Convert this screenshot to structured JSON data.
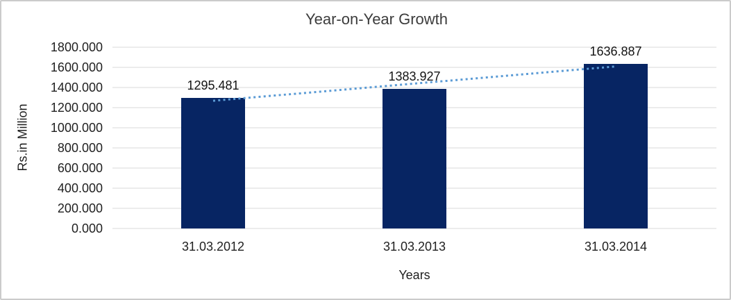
{
  "chart_data": {
    "type": "bar",
    "title": "Year-on-Year Growth",
    "xlabel": "Years",
    "ylabel": "Rs.in Million",
    "categories": [
      "31.03.2012",
      "31.03.2013",
      "31.03.2014"
    ],
    "values": [
      1295.481,
      1383.927,
      1636.887
    ],
    "data_labels": [
      "1295.481",
      "1383.927",
      "1636.887"
    ],
    "ylim": [
      0,
      1800
    ],
    "ytick_step": 200,
    "ytick_labels": [
      "0.000",
      "200.000",
      "400.000",
      "600.000",
      "800.000",
      "1000.000",
      "1200.000",
      "1400.000",
      "1600.000",
      "1800.000"
    ],
    "grid": true,
    "legend": "none",
    "trendline": {
      "type": "linear",
      "style": "dotted"
    },
    "colors": {
      "bar": "#072563",
      "trendline": "#5b9bd5",
      "gridline": "#d9d9d9",
      "text": "#1f1f1f",
      "title": "#3c3c3c",
      "frame": "#cbcbcb"
    }
  }
}
